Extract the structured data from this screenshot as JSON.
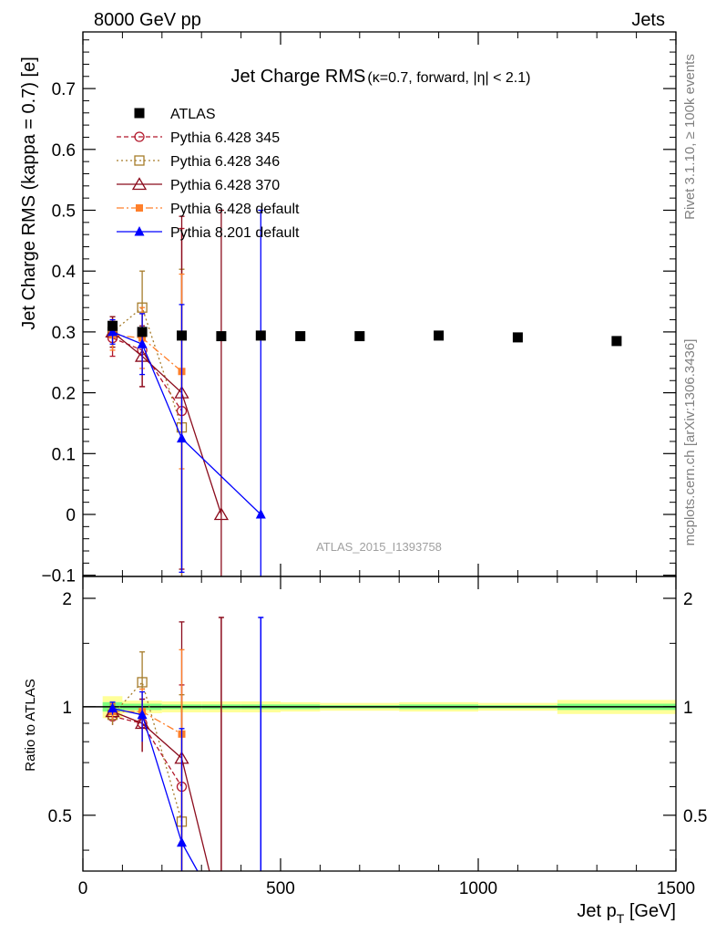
{
  "header": {
    "left": "8000 GeV pp",
    "right": "Jets"
  },
  "side_labels": {
    "rivet": "Rivet 3.1.10, ≥ 100k events",
    "mcplots": "mcplots.cern.ch [arXiv:1306.3436]"
  },
  "watermark": "ATLAS_2015_I1393758",
  "colors": {
    "atlas": "#000000",
    "p345": "#b2182b",
    "p346": "#a67c2a",
    "p370": "#8b0b1c",
    "p6def": "#ff7f2a",
    "p8def": "#0000ff",
    "band_yellow": "#ffff99",
    "band_green": "#7fff7f"
  },
  "chart_data": [
    {
      "type": "line",
      "title": "Jet Charge RMS",
      "title_sub": "(κ=0.7, forward, |η| < 2.1)",
      "ylabel": "Jet Charge RMS (kappa = 0.7) [e]",
      "xlim": [
        0,
        1500
      ],
      "ylim": [
        -0.1,
        0.8
      ],
      "yticks": [
        "0.7",
        "0.6",
        "0.5",
        "0.4",
        "0.3",
        "0.2",
        "0.1",
        "0",
        "−0.1"
      ],
      "legend_position": "top-left",
      "series": [
        {
          "name": "ATLAS",
          "key": "atlas",
          "marker": "filled-square",
          "x": [
            75,
            150,
            250,
            350,
            450,
            550,
            700,
            900,
            1100,
            1350
          ],
          "y": [
            0.31,
            0.3,
            0.294,
            0.293,
            0.294,
            0.293,
            0.293,
            0.294,
            0.291,
            0.285
          ]
        },
        {
          "name": "Pythia 6.428 345",
          "key": "p345",
          "marker": "open-circle",
          "dash": "5,3",
          "x": [
            75,
            150,
            250
          ],
          "y": [
            0.29,
            0.27,
            0.17
          ],
          "err": [
            0.03,
            0.06,
            0.3
          ]
        },
        {
          "name": "Pythia 6.428 346",
          "key": "p346",
          "marker": "open-square",
          "dash": "2,3",
          "x": [
            75,
            150,
            250
          ],
          "y": [
            0.3,
            0.34,
            0.143
          ],
          "err": [
            0.025,
            0.06,
            0.26
          ]
        },
        {
          "name": "Pythia 6.428 370",
          "key": "p370",
          "marker": "open-triangle",
          "dash": "",
          "x": [
            75,
            150,
            250,
            350
          ],
          "y": [
            0.3,
            0.26,
            0.2,
            0.0
          ],
          "err": [
            0.025,
            0.05,
            0.29,
            0.5
          ]
        },
        {
          "name": "Pythia 6.428 default",
          "key": "p6def",
          "marker": "filled-square-small",
          "dash": "8,3,2,3",
          "x": [
            75,
            150,
            250
          ],
          "y": [
            0.295,
            0.29,
            0.235
          ],
          "err": [
            0.025,
            0.05,
            0.16
          ]
        },
        {
          "name": "Pythia 8.201 default",
          "key": "p8def",
          "marker": "filled-triangle",
          "dash": "",
          "x": [
            75,
            150,
            250,
            450
          ],
          "y": [
            0.3,
            0.28,
            0.125,
            0.0
          ],
          "err": [
            0.02,
            0.05,
            0.22,
            0.5
          ]
        }
      ]
    },
    {
      "type": "line",
      "ylabel": "Ratio to ATLAS",
      "xlabel": "Jet p",
      "xlabel_sub": "T",
      "xlabel_unit": " [GeV]",
      "xlim": [
        0,
        1500
      ],
      "ylim": [
        0.35,
        2.3
      ],
      "xticks": [
        "0",
        "500",
        "1000",
        "1500"
      ],
      "yticks_left": [
        "2",
        "1",
        "0.5"
      ],
      "yticks_right": [
        "2",
        "1",
        "0.5"
      ],
      "series": [
        {
          "key": "p345",
          "x": [
            75,
            150,
            250
          ],
          "y": [
            0.94,
            0.9,
            0.6
          ],
          "err": [
            0.05,
            0.15,
            0.55
          ]
        },
        {
          "key": "p346",
          "x": [
            75,
            150,
            250
          ],
          "y": [
            0.95,
            1.17,
            0.48
          ],
          "err": [
            0.06,
            0.25,
            0.6
          ]
        },
        {
          "key": "p370",
          "x": [
            75,
            150,
            250,
            320
          ],
          "y": [
            0.97,
            0.9,
            0.72,
            0.35
          ],
          "err": [
            0.05,
            0.15,
            1.0,
            0
          ]
        },
        {
          "key": "p6def",
          "x": [
            75,
            150,
            250
          ],
          "y": [
            0.97,
            0.97,
            0.84
          ],
          "err": [
            0.05,
            0.15,
            0.6
          ]
        },
        {
          "key": "p8def",
          "x": [
            75,
            150,
            250,
            290
          ],
          "y": [
            0.99,
            0.95,
            0.42,
            0.35
          ],
          "err": [
            0.04,
            0.15,
            0.45,
            0
          ]
        }
      ],
      "extra_errbars": [
        {
          "key": "p370",
          "x": 350,
          "lo": 0.35,
          "hi": 1.77
        },
        {
          "key": "p8def",
          "x": 450,
          "lo": 0.35,
          "hi": 1.77
        }
      ],
      "band": [
        {
          "x0": 50,
          "x1": 100,
          "lo": 0.93,
          "hi": 1.07,
          "glo": 0.97,
          "ghi": 1.03
        },
        {
          "x0": 100,
          "x1": 200,
          "lo": 0.96,
          "hi": 1.04,
          "glo": 0.98,
          "ghi": 1.02
        },
        {
          "x0": 200,
          "x1": 300,
          "lo": 0.965,
          "hi": 1.035,
          "glo": 0.985,
          "ghi": 1.015
        },
        {
          "x0": 300,
          "x1": 400,
          "lo": 0.965,
          "hi": 1.035,
          "glo": 0.985,
          "ghi": 1.015
        },
        {
          "x0": 400,
          "x1": 500,
          "lo": 0.965,
          "hi": 1.035,
          "glo": 0.985,
          "ghi": 1.015
        },
        {
          "x0": 500,
          "x1": 600,
          "lo": 0.97,
          "hi": 1.03,
          "glo": 0.985,
          "ghi": 1.015
        },
        {
          "x0": 600,
          "x1": 800,
          "lo": 0.975,
          "hi": 1.025,
          "glo": 0.99,
          "ghi": 1.01
        },
        {
          "x0": 800,
          "x1": 1000,
          "lo": 0.97,
          "hi": 1.03,
          "glo": 0.985,
          "ghi": 1.015
        },
        {
          "x0": 1000,
          "x1": 1200,
          "lo": 0.975,
          "hi": 1.025,
          "glo": 0.99,
          "ghi": 1.01
        },
        {
          "x0": 1200,
          "x1": 1500,
          "lo": 0.955,
          "hi": 1.045,
          "glo": 0.98,
          "ghi": 1.02
        }
      ]
    }
  ]
}
